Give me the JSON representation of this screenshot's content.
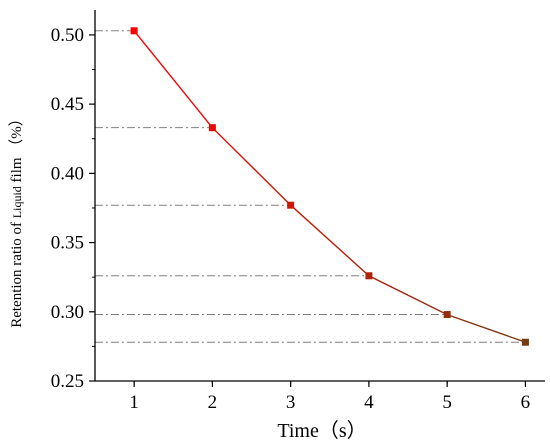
{
  "chart_data": {
    "type": "line",
    "title": "",
    "xlabel": "Time（s）",
    "ylabel_parts": [
      "Retention ratio of ",
      "Liquid",
      " film （%）"
    ],
    "x": [
      1,
      2,
      3,
      4,
      5,
      6
    ],
    "y": [
      0.503,
      0.433,
      0.377,
      0.326,
      0.298,
      0.278
    ],
    "x_ticks": [
      "1",
      "2",
      "3",
      "4",
      "5",
      "6"
    ],
    "y_ticks": [
      "0.25",
      "0.30",
      "0.35",
      "0.40",
      "0.45",
      "0.50"
    ],
    "xlim": [
      0.5,
      6.25
    ],
    "ylim": [
      0.25,
      0.518
    ],
    "grid": false,
    "reference_lines": "horizontal dash-dot lines from the y axis to each data point",
    "colors": {
      "line_start": "#ff0000",
      "line_end": "#7a3a10",
      "marker_start": "#ff0000",
      "marker_end": "#7a3a10",
      "reference_line": "#808080",
      "axis": "#000000"
    },
    "marker": "square"
  }
}
